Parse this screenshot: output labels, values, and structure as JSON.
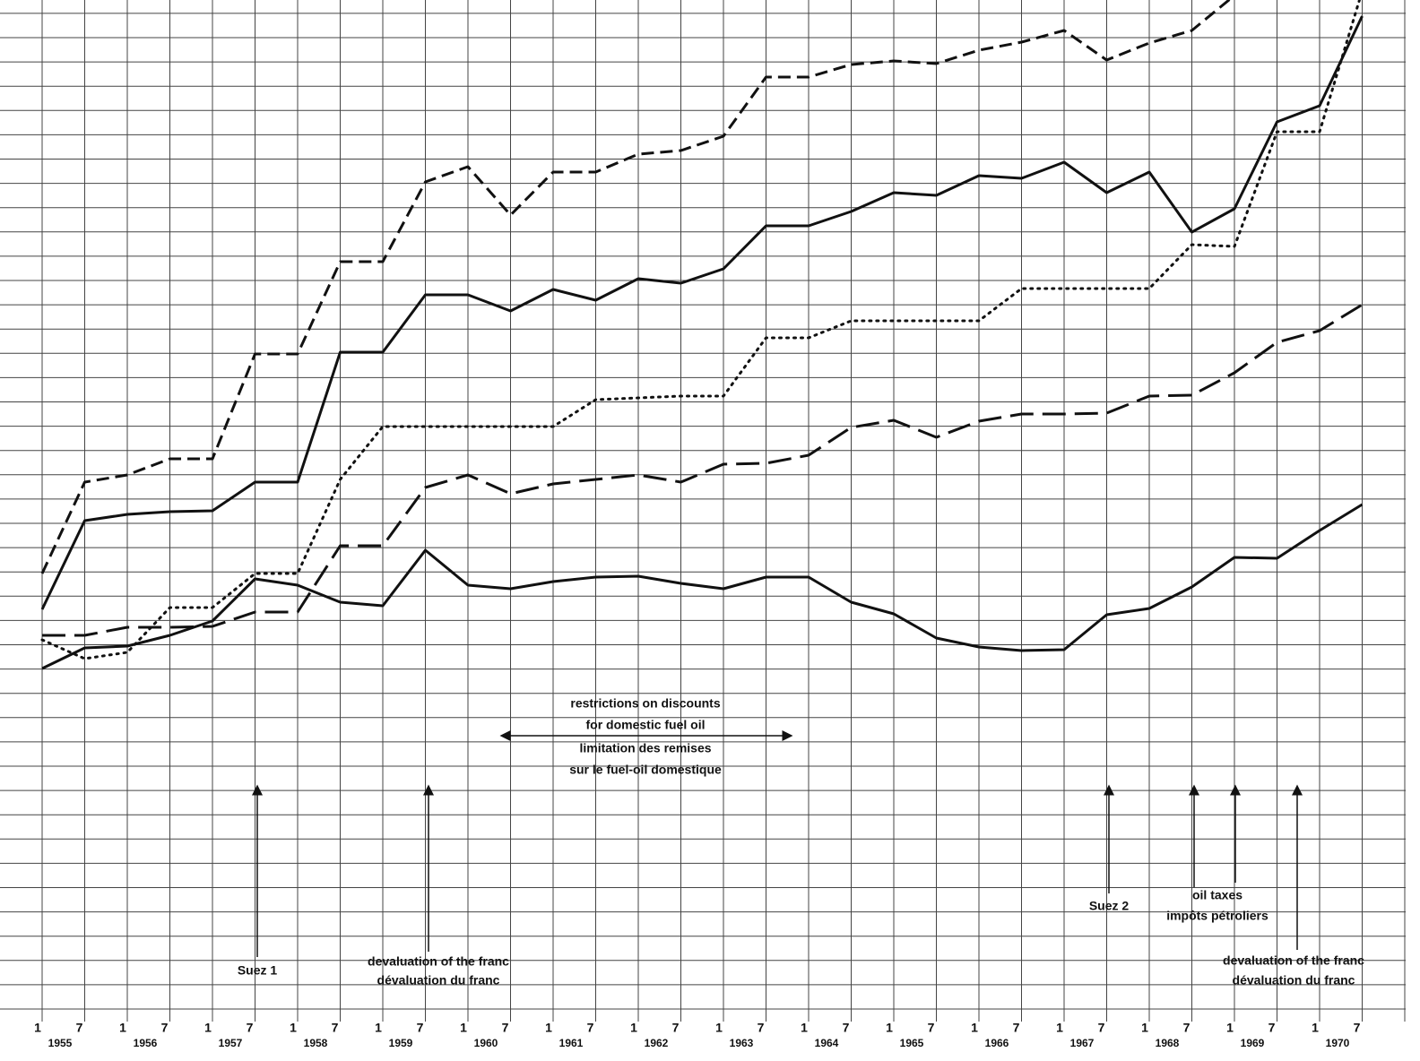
{
  "chart_data": {
    "type": "line",
    "years": [
      "1955",
      "1956",
      "1957",
      "1958",
      "1959",
      "1960",
      "1961",
      "1962",
      "1963",
      "1964",
      "1965",
      "1966",
      "1967",
      "1968",
      "1969",
      "1970"
    ],
    "half_labels": [
      "1",
      "7"
    ],
    "ylim": [
      0,
      113
    ],
    "grid": true,
    "series": [
      {
        "color": "#111111",
        "dash": "14,7",
        "values": [
          49,
          59.2,
          60,
          61.8,
          61.8,
          73.5,
          73.5,
          83.8,
          83.8,
          92.7,
          94.4,
          89,
          93.8,
          93.8,
          95.8,
          96.2,
          97.8,
          104.4,
          104.4,
          105.8,
          106.2,
          105.9,
          107.4,
          108.3,
          109.6,
          106.3,
          108.2,
          109.6,
          113.5,
          null,
          null,
          null
        ]
      },
      {
        "color": "#111111",
        "dash": "none",
        "values": [
          45,
          54.9,
          55.6,
          55.9,
          56,
          59.2,
          59.2,
          73.7,
          73.7,
          80.1,
          80.1,
          78.3,
          80.7,
          79.5,
          81.9,
          81.4,
          83,
          87.8,
          87.8,
          89.4,
          91.5,
          91.2,
          93.4,
          93.1,
          94.9,
          91.5,
          93.8,
          87.1,
          89.7,
          99.4,
          101.2,
          111.2
        ]
      },
      {
        "color": "#111111",
        "dash": "2,6",
        "values": [
          41.6,
          39.5,
          40.2,
          45.2,
          45.2,
          49,
          49,
          59.5,
          65.4,
          65.4,
          65.4,
          65.4,
          65.4,
          68.4,
          68.6,
          68.8,
          68.8,
          75.3,
          75.3,
          77.2,
          77.2,
          77.2,
          77.2,
          80.8,
          80.8,
          80.8,
          80.8,
          85.7,
          85.5,
          98.3,
          98.3,
          114
        ]
      },
      {
        "color": "#111111",
        "dash": "26,10",
        "values": [
          42.1,
          42.1,
          43,
          43,
          43.1,
          44.7,
          44.7,
          52.1,
          52.1,
          58.6,
          60,
          57.9,
          59,
          59.5,
          60,
          59.2,
          61.2,
          61.3,
          62.2,
          65.3,
          66.1,
          64.2,
          66,
          66.8,
          66.8,
          66.9,
          68.8,
          68.9,
          71.4,
          74.8,
          76.1,
          79
        ]
      },
      {
        "color": "#111111",
        "dash": "none",
        "values": [
          38.4,
          40.7,
          40.9,
          42.1,
          43.7,
          48.4,
          47.7,
          45.8,
          45.4,
          51.6,
          47.7,
          47.3,
          48.1,
          48.6,
          48.7,
          47.9,
          47.3,
          48.6,
          48.6,
          45.8,
          44.5,
          41.8,
          40.8,
          40.4,
          40.5,
          44.4,
          45.1,
          47.5,
          50.8,
          50.7,
          53.8,
          56.7
        ]
      }
    ],
    "annotations": [
      {
        "lines": [
          "restrictions on discounts",
          "for domestic fuel oil",
          "limitation des remises",
          "sur le fuel-oil domestique"
        ]
      },
      {
        "lines": [
          "Suez 1"
        ]
      },
      {
        "lines": [
          "devaluation of the franc",
          "dévaluation du franc"
        ]
      },
      {
        "lines": [
          "Suez 2"
        ]
      },
      {
        "lines": [
          "oil taxes",
          "impôts pétroliers"
        ]
      },
      {
        "lines": [
          "devaluation of the franc",
          "dévaluation du franc"
        ]
      }
    ]
  }
}
